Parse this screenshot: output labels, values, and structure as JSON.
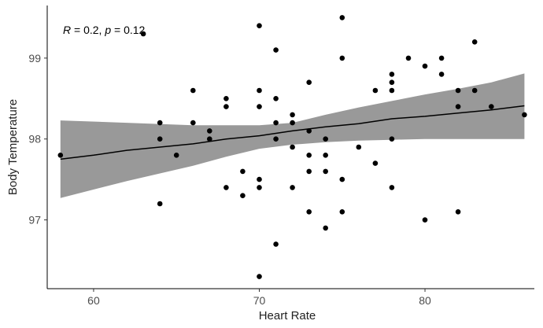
{
  "chart_data": {
    "type": "scatter",
    "title": "",
    "xlabel": "Heart Rate",
    "ylabel": "Body Temperature",
    "xlim": [
      57.2,
      86.6
    ],
    "ylim": [
      96.15,
      99.65
    ],
    "x_ticks": [
      60,
      70,
      80
    ],
    "y_ticks": [
      97,
      98,
      99
    ],
    "x_tick_labels": [
      "60",
      "70",
      "80"
    ],
    "y_tick_labels": [
      "97",
      "98",
      "99"
    ],
    "grid": false,
    "annotation": {
      "r_label": "R",
      "r_value": " = 0.2, ",
      "p_label": "p",
      "p_value": " = 0.12"
    },
    "colors": {
      "points": "#000000",
      "fit": "#000000",
      "band": "#999999"
    },
    "points": [
      [
        58,
        97.8
      ],
      [
        63,
        99.3
      ],
      [
        64,
        98.2
      ],
      [
        64,
        98.0
      ],
      [
        64,
        97.2
      ],
      [
        65,
        97.8
      ],
      [
        66,
        98.6
      ],
      [
        66,
        98.2
      ],
      [
        67,
        98.1
      ],
      [
        67,
        98.0
      ],
      [
        68,
        98.5
      ],
      [
        68,
        98.4
      ],
      [
        68,
        97.4
      ],
      [
        69,
        97.6
      ],
      [
        69,
        97.3
      ],
      [
        70,
        99.4
      ],
      [
        70,
        98.6
      ],
      [
        70,
        98.4
      ],
      [
        70,
        97.5
      ],
      [
        70,
        97.4
      ],
      [
        70,
        96.3
      ],
      [
        71,
        99.1
      ],
      [
        71,
        98.5
      ],
      [
        71,
        98.2
      ],
      [
        71,
        98.0
      ],
      [
        71,
        96.7
      ],
      [
        72,
        98.3
      ],
      [
        72,
        98.2
      ],
      [
        72,
        97.9
      ],
      [
        72,
        97.4
      ],
      [
        73,
        98.7
      ],
      [
        73,
        98.1
      ],
      [
        73,
        97.8
      ],
      [
        73,
        97.6
      ],
      [
        73,
        97.1
      ],
      [
        74,
        98.0
      ],
      [
        74,
        97.8
      ],
      [
        74,
        97.6
      ],
      [
        74,
        96.9
      ],
      [
        75,
        99.5
      ],
      [
        75,
        99.0
      ],
      [
        75,
        97.5
      ],
      [
        75,
        97.1
      ],
      [
        76,
        97.9
      ],
      [
        77,
        98.6
      ],
      [
        77,
        97.7
      ],
      [
        78,
        98.8
      ],
      [
        78,
        98.7
      ],
      [
        78,
        98.6
      ],
      [
        78,
        98.0
      ],
      [
        78,
        97.4
      ],
      [
        79,
        99.0
      ],
      [
        80,
        98.9
      ],
      [
        80,
        97.0
      ],
      [
        81,
        99.0
      ],
      [
        81,
        98.8
      ],
      [
        82,
        98.6
      ],
      [
        82,
        98.4
      ],
      [
        82,
        97.1
      ],
      [
        83,
        99.2
      ],
      [
        83,
        98.6
      ],
      [
        84,
        98.4
      ],
      [
        86,
        98.3
      ]
    ],
    "fit_line": [
      [
        58,
        97.75
      ],
      [
        60,
        97.8
      ],
      [
        62,
        97.86
      ],
      [
        64,
        97.9
      ],
      [
        66,
        97.94
      ],
      [
        68,
        98.0
      ],
      [
        70,
        98.04
      ],
      [
        72,
        98.1
      ],
      [
        74,
        98.15
      ],
      [
        76,
        98.19
      ],
      [
        78,
        98.25
      ],
      [
        80,
        98.28
      ],
      [
        82,
        98.32
      ],
      [
        84,
        98.36
      ],
      [
        86,
        98.41
      ]
    ],
    "band_upper": [
      [
        58,
        98.23
      ],
      [
        62,
        98.2
      ],
      [
        66,
        98.17
      ],
      [
        70,
        98.17
      ],
      [
        72,
        98.2
      ],
      [
        74,
        98.3
      ],
      [
        76,
        98.39
      ],
      [
        78,
        98.47
      ],
      [
        80,
        98.55
      ],
      [
        82,
        98.62
      ],
      [
        84,
        98.7
      ],
      [
        86,
        98.81
      ]
    ],
    "band_lower": [
      [
        58,
        97.27
      ],
      [
        62,
        97.48
      ],
      [
        66,
        97.67
      ],
      [
        68,
        97.78
      ],
      [
        70,
        97.88
      ],
      [
        72,
        97.93
      ],
      [
        74,
        97.96
      ],
      [
        76,
        97.98
      ],
      [
        78,
        97.99
      ],
      [
        80,
        98.0
      ],
      [
        82,
        98.0
      ],
      [
        84,
        98.0
      ],
      [
        86,
        98.0
      ]
    ]
  }
}
